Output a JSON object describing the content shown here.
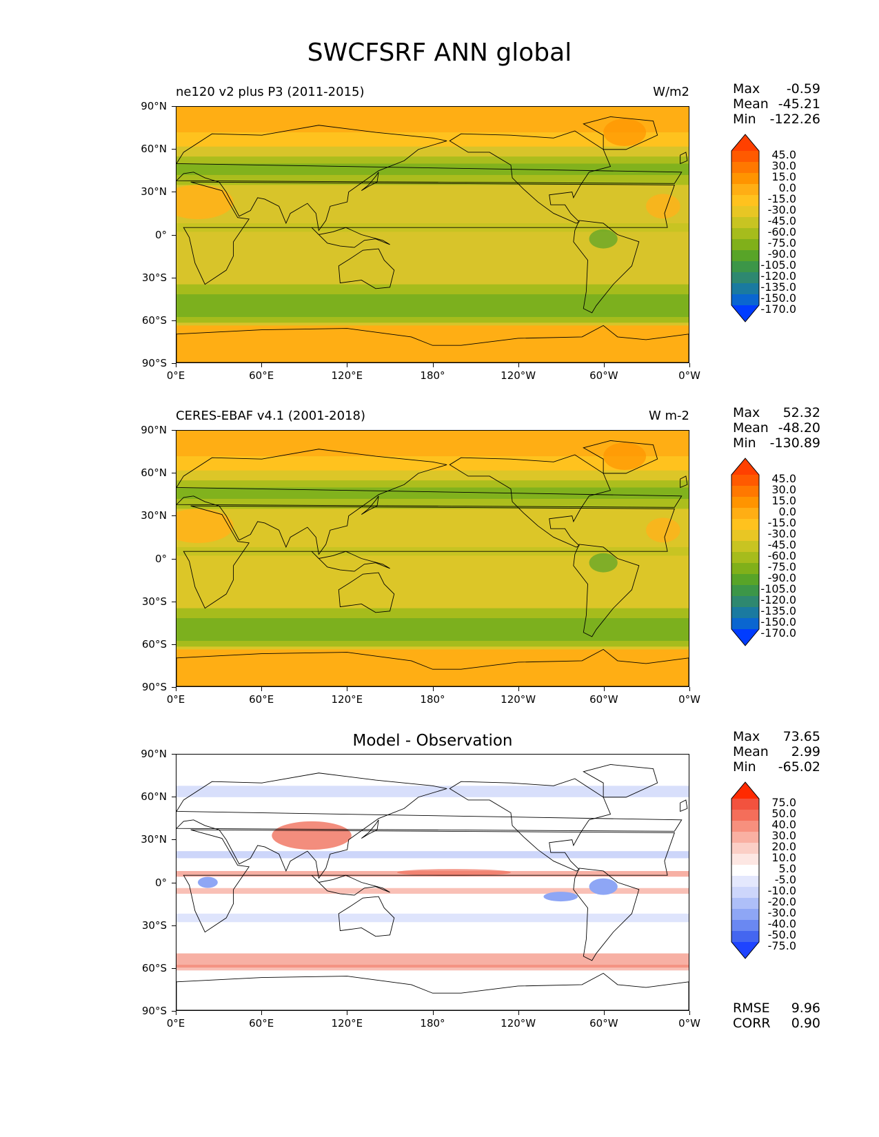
{
  "suptitle": "SWCFSRF ANN global",
  "axes": {
    "lat_labels": [
      "90°N",
      "60°N",
      "30°N",
      "0°",
      "30°S",
      "60°S",
      "90°S"
    ],
    "lon_labels": [
      "0°E",
      "60°E",
      "120°E",
      "180°",
      "120°W",
      "60°W",
      "0°W"
    ]
  },
  "panels": [
    {
      "title": "ne120 v2 plus P3 (2011-2015)",
      "units": "W/m2",
      "center_title": "",
      "stats": {
        "max_label": "Max",
        "max": "-0.59",
        "mean_label": "Mean",
        "mean": "-45.21",
        "min_label": "Min",
        "min": "-122.26"
      },
      "colorbar": {
        "labels": [
          "45.0",
          "30.0",
          "15.0",
          "0.0",
          "-15.0",
          "-30.0",
          "-45.0",
          "-60.0",
          "-75.0",
          "-90.0",
          "-105.0",
          "-120.0",
          "-135.0",
          "-150.0",
          "-170.0"
        ],
        "colors": [
          "#ff4000",
          "#ff5a00",
          "#ff7800",
          "#ff9400",
          "#ffae14",
          "#ffc21e",
          "#e8c624",
          "#c8c422",
          "#a6bc1c",
          "#80b01a",
          "#58a428",
          "#3c9648",
          "#2e8870",
          "#1a7aa0",
          "#0a66d0",
          "#003cff"
        ]
      },
      "map_colors": {
        "ocean_base": "#d8c42a",
        "polar": "#ffae14",
        "storm": "#7cb01e",
        "land_dry": "#ffb21a"
      }
    },
    {
      "title": "CERES-EBAF v4.1 (2001-2018)",
      "units": "W m-2",
      "center_title": "",
      "stats": {
        "max_label": "Max",
        "max": "52.32",
        "mean_label": "Mean",
        "mean": "-48.20",
        "min_label": "Min",
        "min": "-130.89"
      },
      "colorbar": {
        "labels": [
          "45.0",
          "30.0",
          "15.0",
          "0.0",
          "-15.0",
          "-30.0",
          "-45.0",
          "-60.0",
          "-75.0",
          "-90.0",
          "-105.0",
          "-120.0",
          "-135.0",
          "-150.0",
          "-170.0"
        ],
        "colors": [
          "#ff4000",
          "#ff5a00",
          "#ff7800",
          "#ff9400",
          "#ffae14",
          "#ffc21e",
          "#e8c624",
          "#c8c422",
          "#a6bc1c",
          "#80b01a",
          "#58a428",
          "#3c9648",
          "#2e8870",
          "#1a7aa0",
          "#0a66d0",
          "#003cff"
        ]
      },
      "map_colors": {
        "ocean_base": "#dcc628",
        "polar": "#ffae14",
        "storm": "#7cb01e",
        "land_dry": "#ffb21a"
      }
    },
    {
      "title": "",
      "units": "",
      "center_title": "Model - Observation",
      "stats": {
        "max_label": "Max",
        "max": "73.65",
        "mean_label": "Mean",
        "mean": "2.99",
        "min_label": "Min",
        "min": "-65.02"
      },
      "colorbar": {
        "labels": [
          "75.0",
          "50.0",
          "40.0",
          "30.0",
          "20.0",
          "10.0",
          "5.0",
          "-5.0",
          "-10.0",
          "-20.0",
          "-30.0",
          "-40.0",
          "-50.0",
          "-75.0"
        ],
        "colors": [
          "#ff2a00",
          "#f2523e",
          "#f46e5a",
          "#f7907e",
          "#f9b0a2",
          "#fbcfc6",
          "#fde7e3",
          "#ffffff",
          "#e4e8fd",
          "#cdd6fb",
          "#aebff8",
          "#8ea6f5",
          "#6a88f2",
          "#4466f0",
          "#1f44ff"
        ]
      },
      "map_colors": {
        "ocean_base": "#ffffff",
        "pos": "#f7b0a4",
        "pos_strong": "#f0705c",
        "neg": "#c8d2fa",
        "neg_strong": "#8ea6f5"
      },
      "metrics": {
        "rmse_label": "RMSE",
        "rmse": "9.96",
        "corr_label": "CORR",
        "corr": "0.90"
      }
    }
  ]
}
